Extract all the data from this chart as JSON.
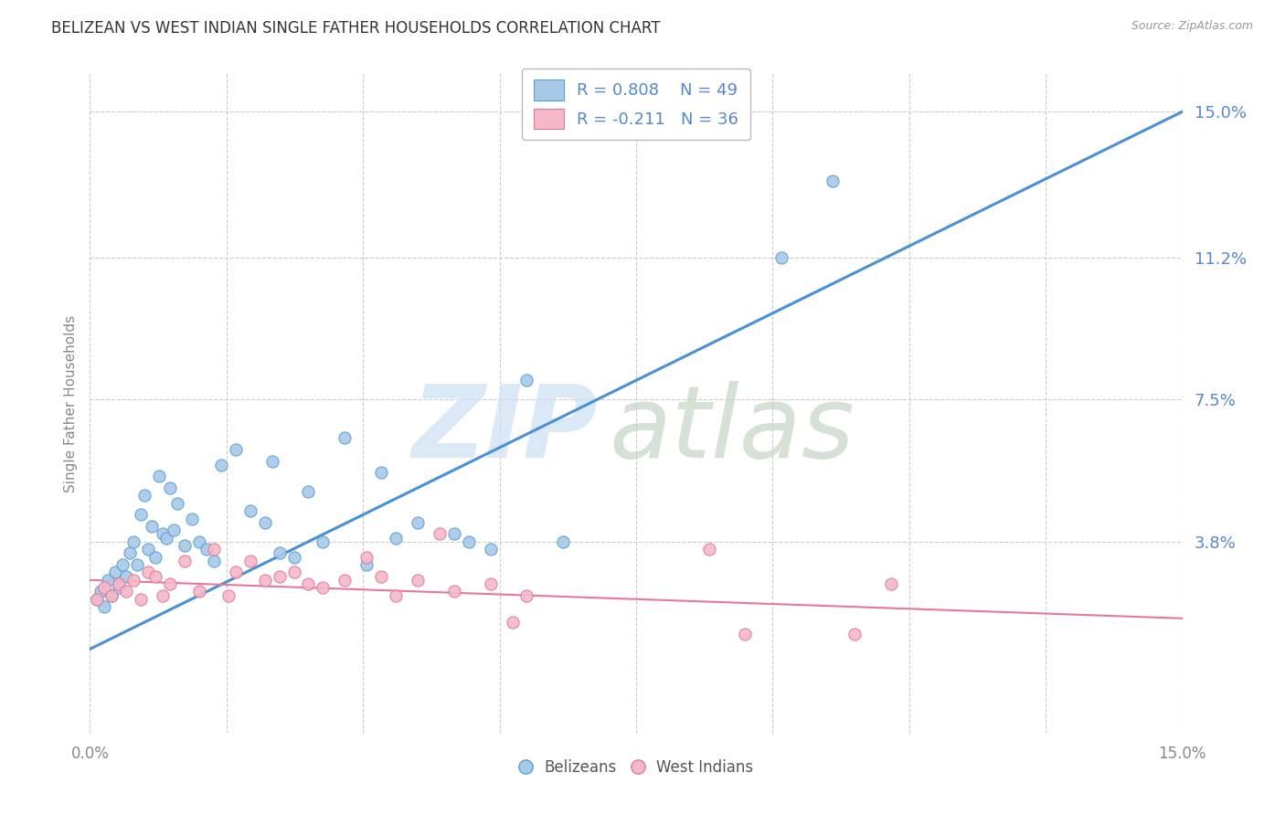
{
  "title": "BELIZEAN VS WEST INDIAN SINGLE FATHER HOUSEHOLDS CORRELATION CHART",
  "source": "Source: ZipAtlas.com",
  "ylabel": "Single Father Households",
  "blue_color": "#a8c8e8",
  "blue_edge_color": "#5a9fd4",
  "pink_color": "#f5b8c8",
  "pink_edge_color": "#e07898",
  "blue_line_color": "#4a90d4",
  "pink_line_color": "#e8789a",
  "grid_color": "#cccccc",
  "background_color": "#ffffff",
  "ytick_values": [
    3.8,
    7.5,
    11.2,
    15.0
  ],
  "ytick_labels": [
    "3.8%",
    "7.5%",
    "11.2%",
    "15.0%"
  ],
  "xlim": [
    0.0,
    15.0
  ],
  "ylim": [
    -1.2,
    16.0
  ],
  "xtick_vals": [
    0.0,
    1.875,
    3.75,
    5.625,
    7.5,
    9.375,
    11.25,
    13.125,
    15.0
  ],
  "blue_trendline_x": [
    0.0,
    15.0
  ],
  "blue_trendline_y": [
    1.0,
    15.0
  ],
  "pink_trendline_x": [
    0.0,
    15.0
  ],
  "pink_trendline_y": [
    2.8,
    1.8
  ],
  "belizean_x": [
    0.1,
    0.15,
    0.2,
    0.25,
    0.3,
    0.35,
    0.4,
    0.45,
    0.5,
    0.55,
    0.6,
    0.65,
    0.7,
    0.75,
    0.8,
    0.85,
    0.9,
    0.95,
    1.0,
    1.05,
    1.1,
    1.15,
    1.2,
    1.3,
    1.4,
    1.5,
    1.6,
    1.7,
    1.8,
    2.0,
    2.2,
    2.4,
    2.5,
    2.6,
    2.8,
    3.0,
    3.2,
    3.5,
    3.8,
    4.0,
    4.2,
    4.5,
    5.0,
    5.2,
    5.5,
    6.0,
    6.5,
    9.5,
    10.2
  ],
  "belizean_y": [
    2.3,
    2.5,
    2.1,
    2.8,
    2.4,
    3.0,
    2.6,
    3.2,
    2.9,
    3.5,
    3.8,
    3.2,
    4.5,
    5.0,
    3.6,
    4.2,
    3.4,
    5.5,
    4.0,
    3.9,
    5.2,
    4.1,
    4.8,
    3.7,
    4.4,
    3.8,
    3.6,
    3.3,
    5.8,
    6.2,
    4.6,
    4.3,
    5.9,
    3.5,
    3.4,
    5.1,
    3.8,
    6.5,
    3.2,
    5.6,
    3.9,
    4.3,
    4.0,
    3.8,
    3.6,
    8.0,
    3.8,
    11.2,
    13.2
  ],
  "westindian_x": [
    0.1,
    0.2,
    0.3,
    0.4,
    0.5,
    0.6,
    0.7,
    0.8,
    0.9,
    1.0,
    1.1,
    1.3,
    1.5,
    1.7,
    1.9,
    2.0,
    2.2,
    2.4,
    2.6,
    2.8,
    3.0,
    3.2,
    3.5,
    3.8,
    4.0,
    4.2,
    4.5,
    4.8,
    5.0,
    5.5,
    5.8,
    6.0,
    8.5,
    9.0,
    10.5,
    11.0
  ],
  "westindian_y": [
    2.3,
    2.6,
    2.4,
    2.7,
    2.5,
    2.8,
    2.3,
    3.0,
    2.9,
    2.4,
    2.7,
    3.3,
    2.5,
    3.6,
    2.4,
    3.0,
    3.3,
    2.8,
    2.9,
    3.0,
    2.7,
    2.6,
    2.8,
    3.4,
    2.9,
    2.4,
    2.8,
    4.0,
    2.5,
    2.7,
    1.7,
    2.4,
    3.6,
    1.4,
    1.4,
    2.7
  ],
  "watermark_zip_color": "#cce0f5",
  "watermark_atlas_color": "#c5d5c5",
  "title_color": "#333333",
  "source_color": "#999999",
  "tick_color": "#5588cc",
  "xtick_label_color": "#888888"
}
